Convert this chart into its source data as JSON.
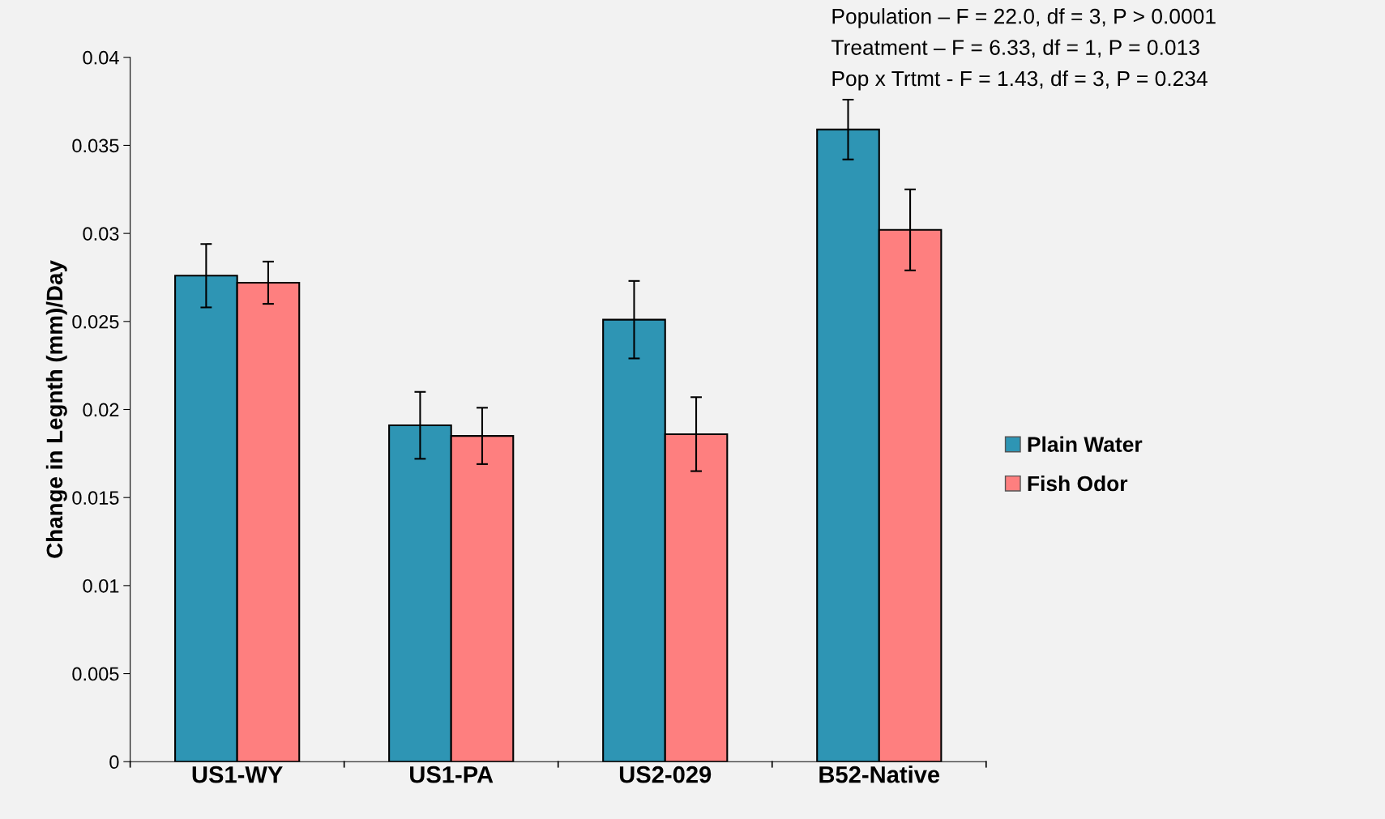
{
  "chart_data": {
    "type": "bar",
    "ylabel": "Change in Legnth (mm)/Day",
    "categories": [
      "US1-WY",
      "US1-PA",
      "US2-029",
      "B52-Native"
    ],
    "series": [
      {
        "name": "Plain Water",
        "color": "#2e95b4",
        "values": [
          0.0276,
          0.0191,
          0.0251,
          0.0359
        ],
        "errors": [
          0.0018,
          0.0019,
          0.0022,
          0.0017
        ]
      },
      {
        "name": "Fish Odor",
        "color": "#fe7f7f",
        "values": [
          0.0272,
          0.0185,
          0.0186,
          0.0302
        ],
        "errors": [
          0.0012,
          0.0016,
          0.0021,
          0.0023
        ]
      }
    ],
    "ylim": [
      0,
      0.04
    ],
    "yticks": [
      0,
      0.005,
      0.01,
      0.015,
      0.02,
      0.025,
      0.03,
      0.035,
      0.04
    ],
    "grid": false,
    "legend": "right",
    "annotations": [
      "Population – F = 22.0, df = 3, P > 0.0001",
      "Treatment – F = 6.33, df = 1, P = 0.013",
      "Pop x Trtmt - F = 1.43, df = 3, P = 0.234"
    ]
  }
}
